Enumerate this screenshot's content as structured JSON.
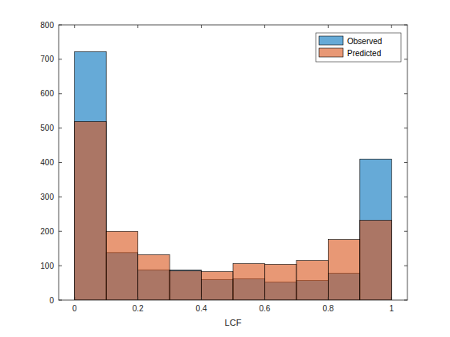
{
  "chart_data": {
    "type": "histogram",
    "x_label": "LCF",
    "bins": [
      0,
      0.1,
      0.2,
      0.3,
      0.4,
      0.5,
      0.6,
      0.7,
      0.8,
      0.9,
      1
    ],
    "series": [
      {
        "name": "Observed",
        "color": "#0072bd",
        "values": [
          722,
          138,
          88,
          87,
          60,
          62,
          52,
          57,
          78,
          410
        ]
      },
      {
        "name": "Predicted",
        "color": "#d95319",
        "values": [
          519,
          200,
          132,
          85,
          83,
          106,
          104,
          115,
          176,
          232
        ]
      }
    ],
    "xlim": [
      -0.05,
      1.05
    ],
    "xticks": [
      0,
      0.2,
      0.4,
      0.6,
      0.8,
      1
    ],
    "ylim": [
      0,
      800
    ],
    "yticks": [
      0,
      100,
      200,
      300,
      400,
      500,
      600,
      700,
      800
    ],
    "legend": "northeast"
  }
}
